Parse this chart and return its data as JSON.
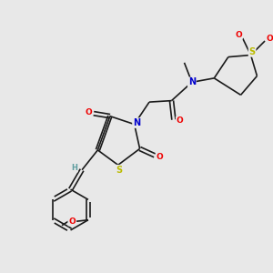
{
  "background_color": "#e8e8e8",
  "bond_color": "#1a1a1a",
  "atom_colors": {
    "N": "#0000cc",
    "O": "#ee0000",
    "S": "#bbbb00",
    "H": "#5f9ea0",
    "C": "#1a1a1a"
  },
  "figsize": [
    3.0,
    3.0
  ],
  "dpi": 100,
  "xlim": [
    -1.5,
    8.5
  ],
  "ylim": [
    -1.5,
    8.5
  ]
}
